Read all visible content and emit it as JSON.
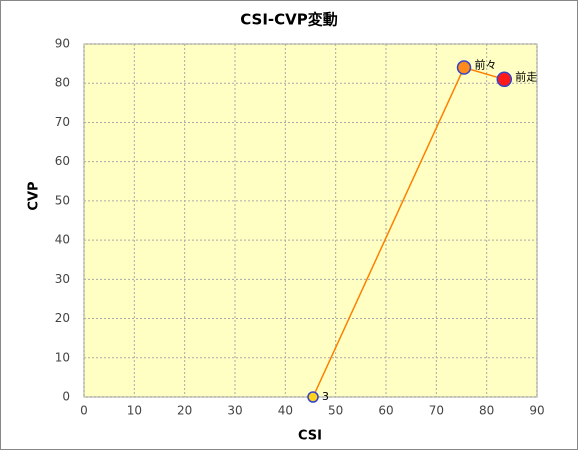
{
  "chart_data": {
    "type": "scatter",
    "title": "CSI-CVP変動",
    "x_label": "CSI",
    "y_label": "CVP",
    "x": [
      45.5,
      75.5,
      83.5
    ],
    "y": [
      0,
      84,
      81
    ],
    "point_labels": [
      "3",
      "前々",
      "前走"
    ],
    "point_colors": [
      "#ffd21e",
      "#ff8c1a",
      "#ff1a1a"
    ],
    "line_color": "#ff8000",
    "xlim": [
      0,
      90
    ],
    "xticks": [
      0,
      10,
      20,
      30,
      40,
      50,
      60,
      70,
      80,
      90
    ],
    "ylim": [
      0,
      90
    ],
    "yticks": [
      0,
      10,
      20,
      30,
      40,
      50,
      60,
      70,
      80,
      90
    ],
    "grid": true
  }
}
